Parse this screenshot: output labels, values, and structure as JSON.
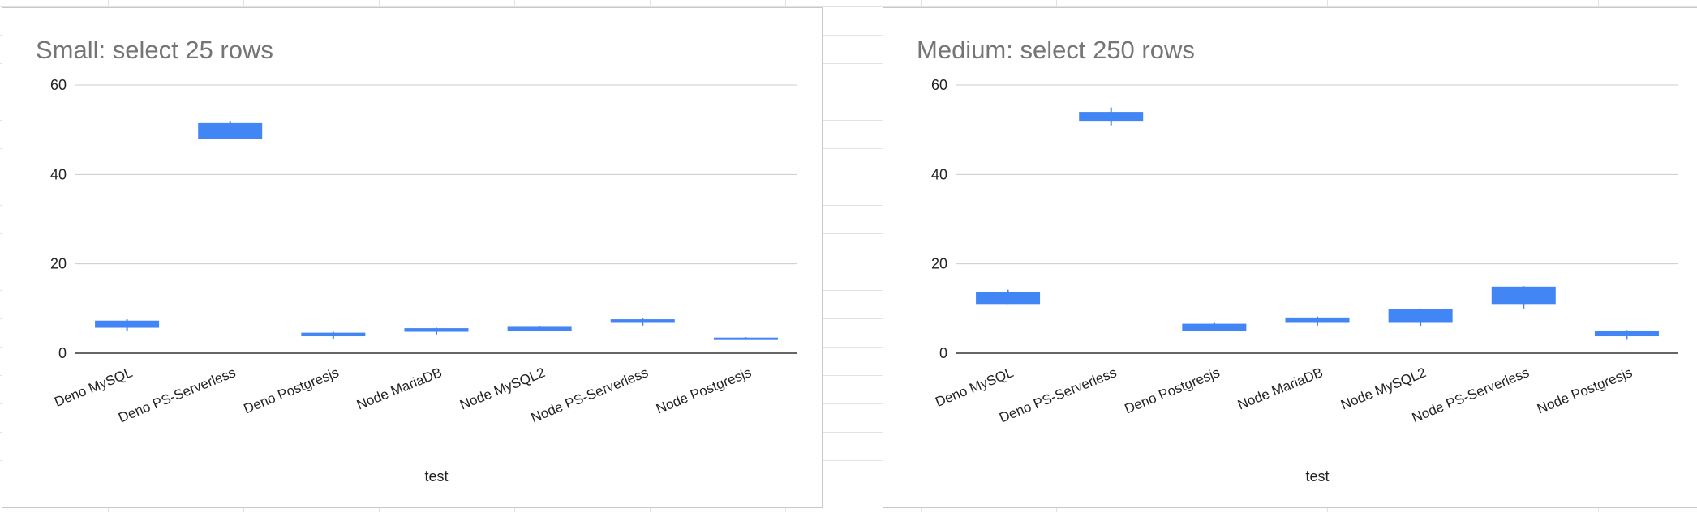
{
  "chart_data": [
    {
      "type": "candlestick",
      "title": "Small: select 25 rows",
      "xlabel": "test",
      "ylabel": "",
      "ylim": [
        0,
        60
      ],
      "yticks": [
        0,
        20,
        40,
        60
      ],
      "grid": true,
      "legend": "none",
      "color": "#4285f4",
      "categories": [
        "Deno MySQL",
        "Deno PS-Serverless",
        "Deno Postgresjs",
        "Node MariaDB",
        "Node MySQL2",
        "Node PS-Serverless",
        "Node Postgresjs"
      ],
      "series": [
        {
          "low": [
            5.0,
            48.0,
            3.2,
            4.2,
            5.0,
            6.2,
            3.0
          ],
          "open": [
            5.7,
            48.0,
            3.8,
            4.8,
            5.0,
            6.8,
            3.0
          ],
          "close": [
            7.3,
            51.5,
            4.6,
            5.6,
            5.9,
            7.6,
            3.5
          ],
          "high": [
            7.6,
            52.0,
            4.8,
            5.7,
            6.0,
            7.8,
            3.6
          ]
        }
      ]
    },
    {
      "type": "candlestick",
      "title": "Medium: select 250 rows",
      "xlabel": "test",
      "ylabel": "",
      "ylim": [
        0,
        60
      ],
      "yticks": [
        0,
        20,
        40,
        60
      ],
      "grid": true,
      "legend": "none",
      "color": "#4285f4",
      "categories": [
        "Deno MySQL",
        "Deno PS-Serverless",
        "Deno Postgresjs",
        "Node MariaDB",
        "Node MySQL2",
        "Node PS-Serverless",
        "Node Postgresjs"
      ],
      "series": [
        {
          "low": [
            11.0,
            51.0,
            5.0,
            6.2,
            6.0,
            10.0,
            3.0
          ],
          "open": [
            11.0,
            52.0,
            5.0,
            6.8,
            6.8,
            11.0,
            3.8
          ],
          "close": [
            13.6,
            54.0,
            6.6,
            8.0,
            9.9,
            14.9,
            5.0
          ],
          "high": [
            14.2,
            55.0,
            6.8,
            8.2,
            10.0,
            15.0,
            5.2
          ]
        }
      ]
    }
  ]
}
